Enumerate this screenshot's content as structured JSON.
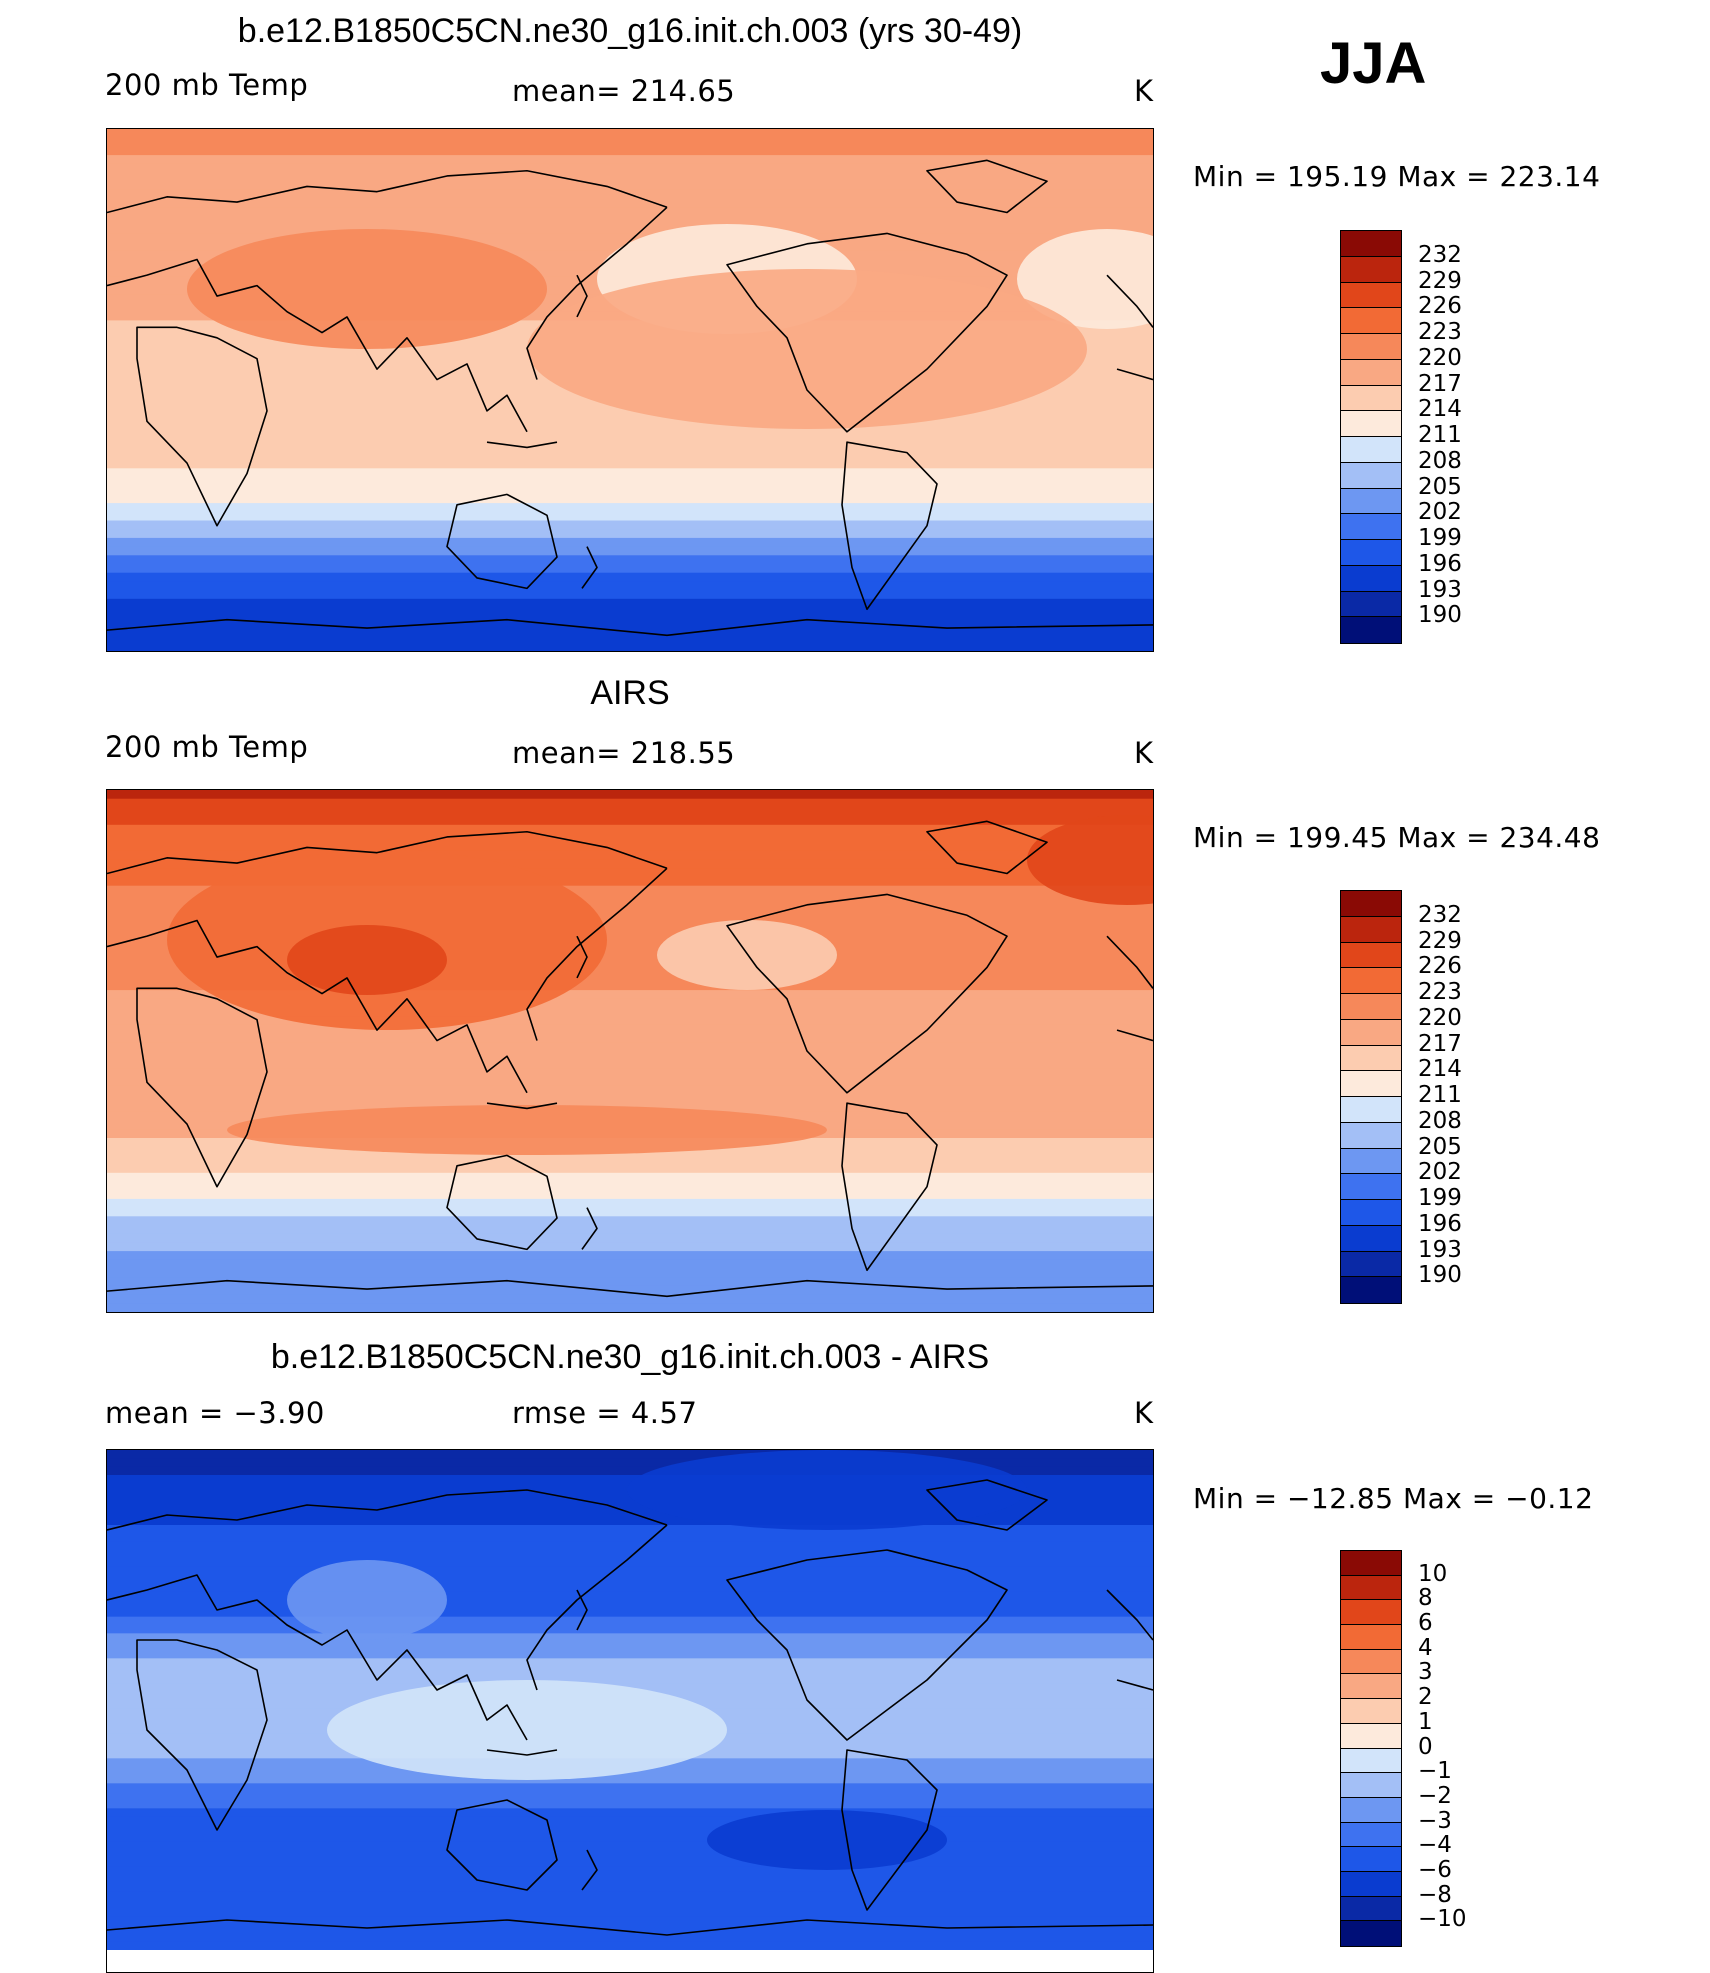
{
  "season": "JJA",
  "colors": {
    "temp_scale": [
      "#000f78",
      "#0a29a6",
      "#0a3cd0",
      "#1e57e8",
      "#3e72f0",
      "#6d97f2",
      "#a3bff6",
      "#d2e4fa",
      "#fdeadc",
      "#fcccb0",
      "#f9a883",
      "#f6885a",
      "#f26a35",
      "#e1461a",
      "#bb250d",
      "#8a0a05"
    ],
    "diff_scale": [
      "#000f78",
      "#0a29a6",
      "#0a3cd0",
      "#1e57e8",
      "#3e72f0",
      "#6d97f2",
      "#a3bff6",
      "#d2e4fa",
      "#fdeadc",
      "#fcccb0",
      "#f9a883",
      "#f6885a",
      "#f26a35",
      "#e1461a",
      "#bb250d",
      "#8a0a05"
    ],
    "coast": "#000000"
  },
  "panels": [
    {
      "title": "b.e12.B1850C5CN.ne30_g16.init.ch.003 (yrs 30-49)",
      "left_label": "200 mb Temp",
      "center_label": "mean=  214.65",
      "unit": "K",
      "minmax": "Min  =  195.19  Max  =  223.14",
      "colorbar_labels": [
        "232",
        "229",
        "226",
        "223",
        "220",
        "217",
        "214",
        "211",
        "208",
        "205",
        "202",
        "199",
        "196",
        "193",
        "190"
      ]
    },
    {
      "title": "AIRS",
      "left_label": "200 mb Temp",
      "center_label": "mean=  218.55",
      "unit": "K",
      "minmax": "Min  =  199.45  Max  =  234.48",
      "colorbar_labels": [
        "232",
        "229",
        "226",
        "223",
        "220",
        "217",
        "214",
        "211",
        "208",
        "205",
        "202",
        "199",
        "196",
        "193",
        "190"
      ]
    },
    {
      "title": "b.e12.B1850C5CN.ne30_g16.init.ch.003 - AIRS",
      "left_label": "mean  =     −3.90",
      "center_label": "rmse  =      4.57",
      "unit": "K",
      "minmax": "Min  =  −12.85  Max  =    −0.12",
      "colorbar_labels": [
        "10",
        "8",
        "6",
        "4",
        "3",
        "2",
        "1",
        "0",
        "−1",
        "−2",
        "−3",
        "−4",
        "−6",
        "−8",
        "−10"
      ]
    }
  ],
  "chart_data": [
    {
      "type": "heatmap",
      "title": "b.e12.B1850C5CN.ne30_g16.init.ch.003 (yrs 30-49)",
      "variable": "200 mb Temp",
      "units": "K",
      "mean": 214.65,
      "min": 195.19,
      "max": 223.14,
      "levels": [
        190,
        193,
        196,
        199,
        202,
        205,
        208,
        211,
        214,
        217,
        220,
        223,
        226,
        229,
        232
      ],
      "zonal_profile": [
        {
          "lat": 90,
          "value": 221
        },
        {
          "lat": 75,
          "value": 219
        },
        {
          "lat": 50,
          "value": 217
        },
        {
          "lat": 30,
          "value": 218
        },
        {
          "lat": 15,
          "value": 215
        },
        {
          "lat": 0,
          "value": 216
        },
        {
          "lat": -20,
          "value": 216
        },
        {
          "lat": -35,
          "value": 212
        },
        {
          "lat": -45,
          "value": 208
        },
        {
          "lat": -55,
          "value": 203
        },
        {
          "lat": -65,
          "value": 197
        },
        {
          "lat": -80,
          "value": 195
        }
      ]
    },
    {
      "type": "heatmap",
      "title": "AIRS",
      "variable": "200 mb Temp",
      "units": "K",
      "mean": 218.55,
      "min": 199.45,
      "max": 234.48,
      "levels": [
        190,
        193,
        196,
        199,
        202,
        205,
        208,
        211,
        214,
        217,
        220,
        223,
        226,
        229,
        232
      ],
      "zonal_profile": [
        {
          "lat": 90,
          "value": 230
        },
        {
          "lat": 75,
          "value": 225
        },
        {
          "lat": 50,
          "value": 222
        },
        {
          "lat": 30,
          "value": 222
        },
        {
          "lat": 15,
          "value": 218
        },
        {
          "lat": 0,
          "value": 218
        },
        {
          "lat": -20,
          "value": 219
        },
        {
          "lat": -35,
          "value": 216
        },
        {
          "lat": -45,
          "value": 213
        },
        {
          "lat": -55,
          "value": 209
        },
        {
          "lat": -65,
          "value": 206
        },
        {
          "lat": -80,
          "value": 203
        }
      ]
    },
    {
      "type": "heatmap",
      "title": "b.e12.B1850C5CN.ne30_g16.init.ch.003 - AIRS",
      "units": "K",
      "mean": -3.9,
      "rmse": 4.57,
      "min": -12.85,
      "max": -0.12,
      "levels": [
        -10,
        -8,
        -6,
        -4,
        -3,
        -2,
        -1,
        0,
        1,
        2,
        3,
        4,
        6,
        8,
        10
      ],
      "zonal_profile": [
        {
          "lat": 90,
          "value": -10
        },
        {
          "lat": 75,
          "value": -7
        },
        {
          "lat": 50,
          "value": -5
        },
        {
          "lat": 30,
          "value": -4
        },
        {
          "lat": 15,
          "value": -2
        },
        {
          "lat": 0,
          "value": -1.5
        },
        {
          "lat": -20,
          "value": -2
        },
        {
          "lat": -35,
          "value": -3.5
        },
        {
          "lat": -45,
          "value": -4.5
        },
        {
          "lat": -55,
          "value": -5
        },
        {
          "lat": -65,
          "value": -6
        },
        {
          "lat": -80,
          "value": -6
        }
      ]
    }
  ]
}
